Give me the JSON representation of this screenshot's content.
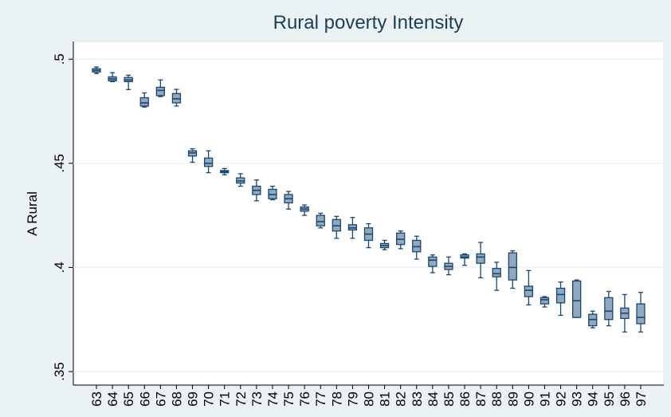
{
  "chart_data": {
    "type": "box",
    "title": "Rural poverty Intensity",
    "y_label": "A Rural",
    "categories": [
      "63",
      "64",
      "65",
      "66",
      "67",
      "68",
      "69",
      "70",
      "71",
      "72",
      "73",
      "74",
      "75",
      "76",
      "77",
      "78",
      "79",
      "80",
      "81",
      "82",
      "83",
      "84",
      "85",
      "86",
      "87",
      "88",
      "89",
      "90",
      "91",
      "92",
      "93",
      "94",
      "95",
      "96",
      "97"
    ],
    "boxes": {
      "max": [
        0.4962,
        0.4935,
        0.4923,
        0.4838,
        0.49,
        0.4855,
        0.457,
        0.456,
        0.4475,
        0.445,
        0.442,
        0.439,
        0.4365,
        0.43,
        0.426,
        0.4245,
        0.424,
        0.421,
        0.413,
        0.4175,
        0.415,
        0.406,
        0.405,
        0.4065,
        0.412,
        0.4025,
        0.408,
        0.3985,
        0.386,
        0.393,
        0.394,
        0.379,
        0.3885,
        0.387,
        0.388
      ],
      "q3": [
        0.4954,
        0.4915,
        0.4912,
        0.4815,
        0.4865,
        0.4835,
        0.456,
        0.4525,
        0.4465,
        0.443,
        0.439,
        0.4375,
        0.435,
        0.429,
        0.425,
        0.423,
        0.4205,
        0.419,
        0.4115,
        0.4165,
        0.413,
        0.405,
        0.402,
        0.406,
        0.4065,
        0.3995,
        0.407,
        0.391,
        0.3855,
        0.39,
        0.3935,
        0.3775,
        0.3855,
        0.3805,
        0.3825
      ],
      "median": [
        0.4946,
        0.4905,
        0.49,
        0.479,
        0.485,
        0.481,
        0.455,
        0.45,
        0.446,
        0.4415,
        0.437,
        0.435,
        0.433,
        0.428,
        0.422,
        0.42,
        0.419,
        0.416,
        0.4105,
        0.4135,
        0.41,
        0.4035,
        0.4005,
        0.405,
        0.405,
        0.397,
        0.4,
        0.389,
        0.3845,
        0.387,
        0.384,
        0.375,
        0.379,
        0.378,
        0.376
      ],
      "q1": [
        0.4938,
        0.4896,
        0.4892,
        0.4775,
        0.4825,
        0.479,
        0.4535,
        0.4485,
        0.4455,
        0.4405,
        0.435,
        0.433,
        0.431,
        0.427,
        0.42,
        0.4175,
        0.418,
        0.413,
        0.4095,
        0.411,
        0.4075,
        0.4005,
        0.399,
        0.4045,
        0.402,
        0.3955,
        0.394,
        0.386,
        0.3825,
        0.383,
        0.376,
        0.372,
        0.375,
        0.3755,
        0.373
      ],
      "min": [
        0.4931,
        0.4892,
        0.4854,
        0.477,
        0.482,
        0.4775,
        0.4505,
        0.4455,
        0.4445,
        0.439,
        0.432,
        0.4325,
        0.428,
        0.425,
        0.419,
        0.414,
        0.414,
        0.4095,
        0.4085,
        0.409,
        0.404,
        0.3975,
        0.3965,
        0.401,
        0.395,
        0.389,
        0.39,
        0.382,
        0.381,
        0.377,
        0.376,
        0.371,
        0.372,
        0.369,
        0.369
      ]
    },
    "color": "#90a8c0",
    "edge_color": "#1a476f",
    "ylim": [
      0.3435,
      0.5085
    ],
    "yticks": [
      {
        "value": 0.35,
        "label": ".35"
      },
      {
        "value": 0.4,
        "label": ".4"
      },
      {
        "value": 0.45,
        "label": ".45"
      },
      {
        "value": 0.5,
        "label": ".5"
      }
    ],
    "grid": true
  }
}
